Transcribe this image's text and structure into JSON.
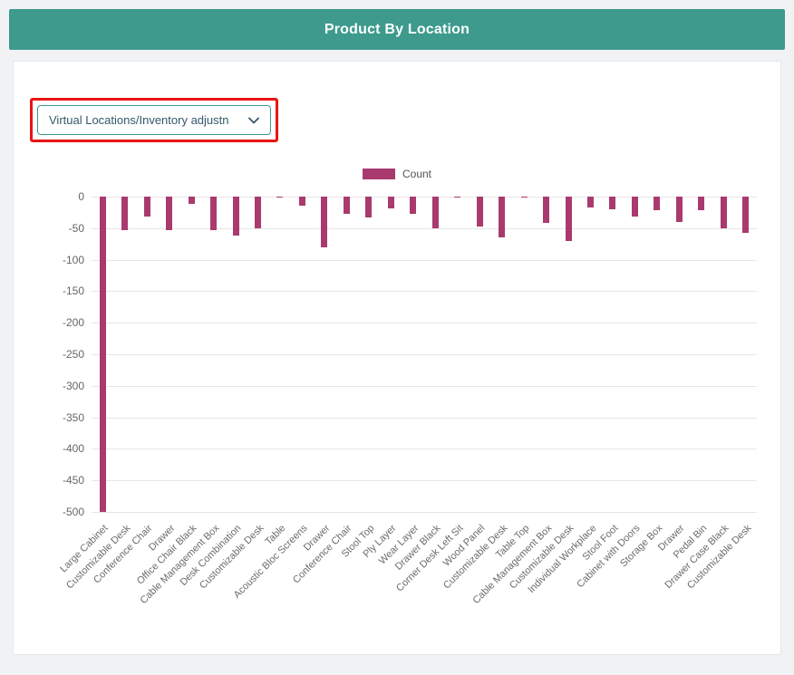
{
  "header": {
    "title": "Product By Location"
  },
  "filter": {
    "value": "Virtual Locations/Inventory adjustn",
    "highlighted": true,
    "highlight_color": "#e81414",
    "border_color": "#3d9a8d"
  },
  "legend": {
    "label": "Count",
    "color": "#a93a6e"
  },
  "chart_data": {
    "type": "bar",
    "title": "",
    "xlabel": "",
    "ylabel": "",
    "legend_position": "top",
    "grid": true,
    "color": "#a93a6e",
    "ylim": [
      -500,
      0
    ],
    "yticks": [
      0,
      -50,
      -100,
      -150,
      -200,
      -250,
      -300,
      -350,
      -400,
      -450,
      -500
    ],
    "categories": [
      "Large Cabinet",
      "Customizable Desk",
      "Conference Chair",
      "Drawer",
      "Office Chair Black",
      "Cable Management Box",
      "Desk Combination",
      "Customizable Desk",
      "Table",
      "Acoustic Bloc Screens",
      "Drawer",
      "Conference Chair",
      "Stool Top",
      "Ply Layer",
      "Wear Layer",
      "Drawer Black",
      "Corner Desk Left Sit",
      "Wood Panel",
      "Customizable Desk",
      "Table Top",
      "Cable Management Box",
      "Customizable Desk",
      "Individual Workplace",
      "Stool Foot",
      "Cabinet with Doors",
      "Storage Box",
      "Drawer",
      "Pedal Bin",
      "Drawer Case Black",
      "Customizable Desk"
    ],
    "series": [
      {
        "name": "Count",
        "values": [
          -500,
          -53,
          -32,
          -53,
          -12,
          -53,
          -62,
          -50,
          -2,
          -15,
          -80,
          -28,
          -33,
          -18,
          -28,
          -50,
          -2,
          -48,
          -65,
          -2,
          -42,
          -70,
          -17,
          -20,
          -32,
          -22,
          -40,
          -22,
          -50,
          -57
        ]
      }
    ]
  },
  "colors": {
    "header_bg": "#3d9a8d",
    "bar": "#a93a6e",
    "annotation": "#e81414"
  }
}
